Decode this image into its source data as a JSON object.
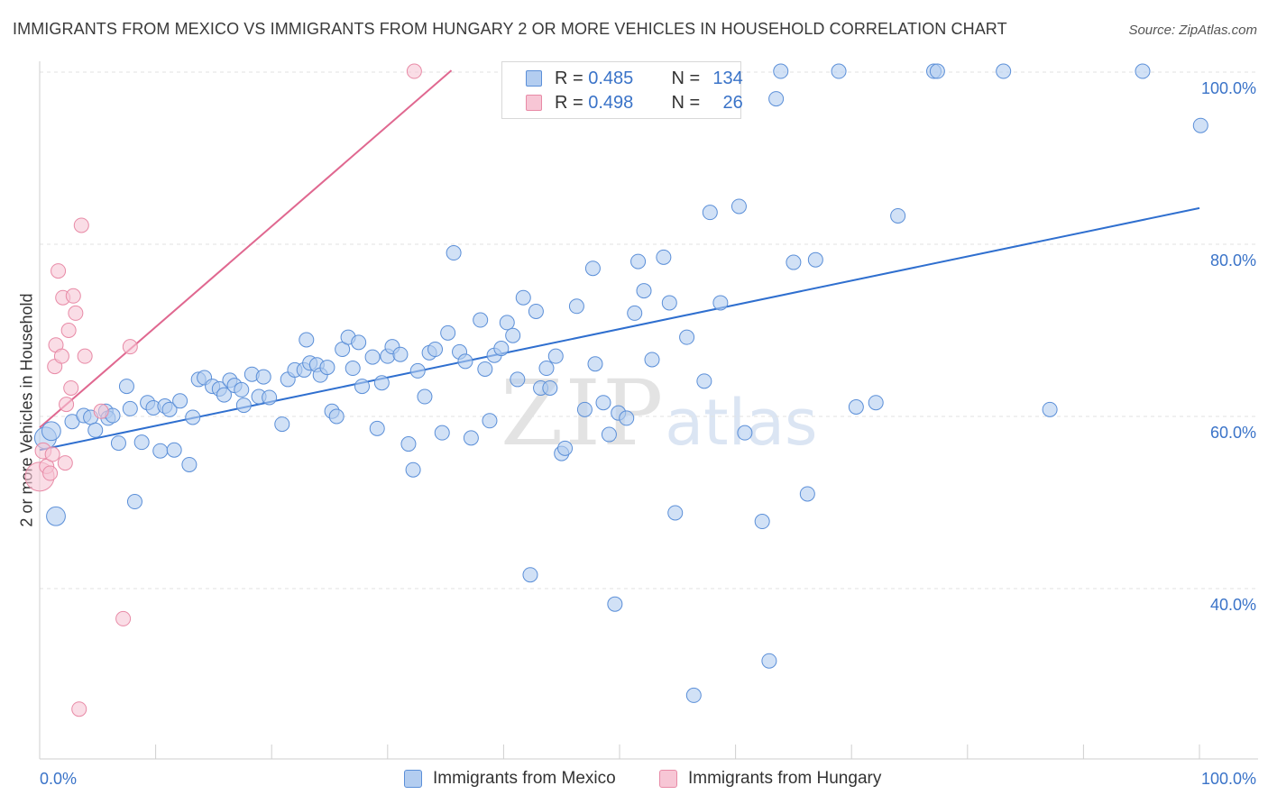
{
  "title": "IMMIGRANTS FROM MEXICO VS IMMIGRANTS FROM HUNGARY 2 OR MORE VEHICLES IN HOUSEHOLD CORRELATION CHART",
  "source": "Source: ZipAtlas.com",
  "watermark": {
    "zip": "ZIP",
    "atlas": "atlas"
  },
  "legend": {
    "r_label": "R =",
    "n_label": "N =",
    "rows": [
      {
        "r": "0.485",
        "n": "134"
      },
      {
        "r": "0.498",
        "n": "26"
      }
    ]
  },
  "colors": {
    "mexico_fill": "#b3cdf0",
    "mexico_stroke": "#5b8fd8",
    "mexico_line": "#2f6fcf",
    "hungary_fill": "#f7c6d5",
    "hungary_stroke": "#e88aa6",
    "hungary_line": "#e06890",
    "tick_label": "#3a73c8",
    "grid": "#e2e2e2"
  },
  "chart_data": {
    "type": "scatter",
    "title": "IMMIGRANTS FROM MEXICO VS IMMIGRANTS FROM HUNGARY 2 OR MORE VEHICLES IN HOUSEHOLD CORRELATION CHART",
    "xlabel": "",
    "ylabel": "2 or more Vehicles in Household",
    "xlim": [
      0,
      100
    ],
    "ylim": [
      20,
      103
    ],
    "x_tick_labels": [
      "0.0%",
      "100.0%"
    ],
    "y_ticks": [
      40,
      60,
      80,
      100
    ],
    "y_tick_labels": [
      "40.0%",
      "60.0%",
      "80.0%",
      "100.0%"
    ],
    "grid": true,
    "legend_position": "bottom",
    "series": [
      {
        "name": "Immigrants from Mexico",
        "r": 0.485,
        "n": 134,
        "trend": {
          "x": [
            0,
            100
          ],
          "y": [
            56.1,
            84.2
          ]
        },
        "points": [
          [
            0.5,
            57.5,
            1.5
          ],
          [
            1.0,
            58.3,
            1.3
          ],
          [
            1.4,
            48.4,
            1.3
          ],
          [
            2.8,
            59.4,
            1.0
          ],
          [
            3.8,
            60.1,
            1.0
          ],
          [
            4.4,
            59.9,
            1.0
          ],
          [
            4.8,
            58.4,
            1.0
          ],
          [
            5.7,
            60.6,
            1.0
          ],
          [
            5.9,
            59.8,
            1.0
          ],
          [
            6.3,
            60.1,
            1.0
          ],
          [
            6.8,
            56.9,
            1.0
          ],
          [
            7.5,
            63.5,
            1.0
          ],
          [
            7.8,
            60.9,
            1.0
          ],
          [
            8.2,
            50.1,
            1.0
          ],
          [
            8.8,
            57.0,
            1.0
          ],
          [
            9.3,
            61.6,
            1.0
          ],
          [
            9.8,
            61.0,
            1.0
          ],
          [
            10.4,
            56.0,
            1.0
          ],
          [
            10.8,
            61.2,
            1.0
          ],
          [
            11.2,
            60.8,
            1.0
          ],
          [
            11.6,
            56.1,
            1.0
          ],
          [
            12.1,
            61.8,
            1.0
          ],
          [
            12.9,
            54.4,
            1.0
          ],
          [
            13.2,
            59.9,
            1.0
          ],
          [
            13.7,
            64.3,
            1.0
          ],
          [
            14.2,
            64.5,
            1.0
          ],
          [
            14.9,
            63.5,
            1.0
          ],
          [
            15.5,
            63.2,
            1.0
          ],
          [
            15.9,
            62.5,
            1.0
          ],
          [
            16.4,
            64.2,
            1.0
          ],
          [
            16.8,
            63.6,
            1.0
          ],
          [
            17.4,
            63.1,
            1.0
          ],
          [
            17.6,
            61.3,
            1.0
          ],
          [
            18.3,
            64.9,
            1.0
          ],
          [
            18.9,
            62.3,
            1.0
          ],
          [
            19.3,
            64.6,
            1.0
          ],
          [
            19.8,
            62.2,
            1.0
          ],
          [
            20.9,
            59.1,
            1.0
          ],
          [
            21.4,
            64.3,
            1.0
          ],
          [
            22.0,
            65.4,
            1.0
          ],
          [
            22.8,
            65.4,
            1.0
          ],
          [
            23.0,
            68.9,
            1.0
          ],
          [
            23.3,
            66.2,
            1.0
          ],
          [
            23.9,
            66.0,
            1.0
          ],
          [
            24.2,
            64.8,
            1.0
          ],
          [
            24.8,
            65.7,
            1.0
          ],
          [
            25.2,
            60.6,
            1.0
          ],
          [
            25.6,
            60.0,
            1.0
          ],
          [
            26.1,
            67.8,
            1.0
          ],
          [
            26.6,
            69.2,
            1.0
          ],
          [
            27.0,
            65.6,
            1.0
          ],
          [
            27.5,
            68.6,
            1.0
          ],
          [
            27.8,
            63.5,
            1.0
          ],
          [
            28.7,
            66.9,
            1.0
          ],
          [
            29.1,
            58.6,
            1.0
          ],
          [
            29.5,
            63.9,
            1.0
          ],
          [
            30.0,
            67.0,
            1.0
          ],
          [
            30.4,
            68.1,
            1.0
          ],
          [
            31.1,
            67.2,
            1.0
          ],
          [
            31.8,
            56.8,
            1.0
          ],
          [
            32.2,
            53.8,
            1.0
          ],
          [
            32.6,
            65.3,
            1.0
          ],
          [
            33.2,
            62.3,
            1.0
          ],
          [
            33.6,
            67.4,
            1.0
          ],
          [
            34.1,
            67.8,
            1.0
          ],
          [
            34.7,
            58.1,
            1.0
          ],
          [
            35.2,
            69.7,
            1.0
          ],
          [
            35.7,
            79.0,
            1.0
          ],
          [
            36.2,
            67.5,
            1.0
          ],
          [
            36.7,
            66.4,
            1.0
          ],
          [
            37.2,
            57.5,
            1.0
          ],
          [
            38.0,
            71.2,
            1.0
          ],
          [
            38.4,
            65.5,
            1.0
          ],
          [
            38.8,
            59.5,
            1.0
          ],
          [
            39.2,
            67.1,
            1.0
          ],
          [
            39.8,
            67.9,
            1.0
          ],
          [
            40.3,
            70.9,
            1.0
          ],
          [
            40.8,
            69.4,
            1.0
          ],
          [
            41.2,
            64.3,
            1.0
          ],
          [
            41.7,
            73.8,
            1.0
          ],
          [
            42.3,
            41.6,
            1.0
          ],
          [
            42.8,
            72.2,
            1.0
          ],
          [
            43.2,
            63.3,
            1.0
          ],
          [
            43.7,
            65.6,
            1.0
          ],
          [
            44.0,
            63.3,
            1.0
          ],
          [
            44.5,
            67.0,
            1.0
          ],
          [
            45.0,
            55.7,
            1.0
          ],
          [
            45.3,
            56.3,
            1.0
          ],
          [
            46.3,
            72.8,
            1.0
          ],
          [
            47.0,
            60.8,
            1.0
          ],
          [
            47.7,
            77.2,
            1.0
          ],
          [
            47.9,
            66.1,
            1.0
          ],
          [
            48.6,
            61.6,
            1.0
          ],
          [
            49.1,
            57.9,
            1.0
          ],
          [
            49.6,
            38.2,
            1.0
          ],
          [
            49.9,
            60.4,
            1.0
          ],
          [
            50.6,
            59.8,
            1.0
          ],
          [
            51.3,
            72.0,
            1.0
          ],
          [
            51.6,
            78.0,
            1.0
          ],
          [
            52.1,
            74.6,
            1.0
          ],
          [
            52.8,
            66.6,
            1.0
          ],
          [
            53.8,
            78.5,
            1.0
          ],
          [
            54.3,
            73.2,
            1.0
          ],
          [
            54.8,
            48.8,
            1.0
          ],
          [
            55.8,
            69.2,
            1.0
          ],
          [
            56.4,
            27.6,
            1.0
          ],
          [
            56.8,
            100.1,
            1.0
          ],
          [
            57.3,
            64.1,
            1.0
          ],
          [
            57.8,
            83.7,
            1.0
          ],
          [
            58.7,
            73.2,
            1.0
          ],
          [
            59.3,
            100.1,
            1.0
          ],
          [
            60.3,
            84.4,
            1.0
          ],
          [
            60.8,
            58.1,
            1.0
          ],
          [
            62.3,
            47.8,
            1.0
          ],
          [
            62.9,
            31.6,
            1.0
          ],
          [
            63.5,
            96.9,
            1.0
          ],
          [
            63.9,
            100.1,
            1.0
          ],
          [
            65.0,
            77.9,
            1.0
          ],
          [
            66.2,
            51.0,
            1.0
          ],
          [
            66.9,
            78.2,
            1.0
          ],
          [
            68.9,
            100.1,
            1.0
          ],
          [
            70.4,
            61.1,
            1.0
          ],
          [
            72.1,
            61.6,
            1.0
          ],
          [
            74.0,
            83.3,
            1.0
          ],
          [
            77.1,
            100.1,
            1.0
          ],
          [
            77.4,
            100.1,
            1.0
          ],
          [
            83.1,
            100.1,
            1.0
          ],
          [
            87.1,
            60.8,
            1.0
          ],
          [
            95.1,
            100.1,
            1.0
          ],
          [
            100.1,
            93.8,
            1.0
          ]
        ]
      },
      {
        "name": "Immigrants from Hungary",
        "r": 0.498,
        "n": 26,
        "trend": {
          "x": [
            0,
            35.5
          ],
          "y": [
            58.7,
            100.2
          ]
        },
        "points": [
          [
            0.0,
            53.0,
            2.0
          ],
          [
            0.3,
            56.0,
            1.1
          ],
          [
            0.6,
            54.2,
            1.0
          ],
          [
            0.9,
            53.4,
            1.0
          ],
          [
            1.1,
            55.6,
            1.0
          ],
          [
            1.3,
            65.8,
            1.0
          ],
          [
            1.4,
            68.3,
            1.0
          ],
          [
            1.6,
            76.9,
            1.0
          ],
          [
            1.9,
            67.0,
            1.0
          ],
          [
            2.0,
            73.8,
            1.0
          ],
          [
            2.2,
            54.6,
            1.0
          ],
          [
            2.3,
            61.4,
            1.0
          ],
          [
            2.5,
            70.0,
            1.0
          ],
          [
            2.7,
            63.3,
            1.0
          ],
          [
            2.9,
            74.0,
            1.0
          ],
          [
            3.1,
            72.0,
            1.0
          ],
          [
            3.4,
            26.0,
            1.0
          ],
          [
            3.6,
            82.2,
            1.0
          ],
          [
            3.9,
            67.0,
            1.0
          ],
          [
            5.3,
            60.6,
            1.0
          ],
          [
            7.2,
            36.5,
            1.0
          ],
          [
            7.8,
            68.1,
            1.0
          ],
          [
            32.3,
            100.1,
            1.0
          ]
        ]
      }
    ]
  }
}
